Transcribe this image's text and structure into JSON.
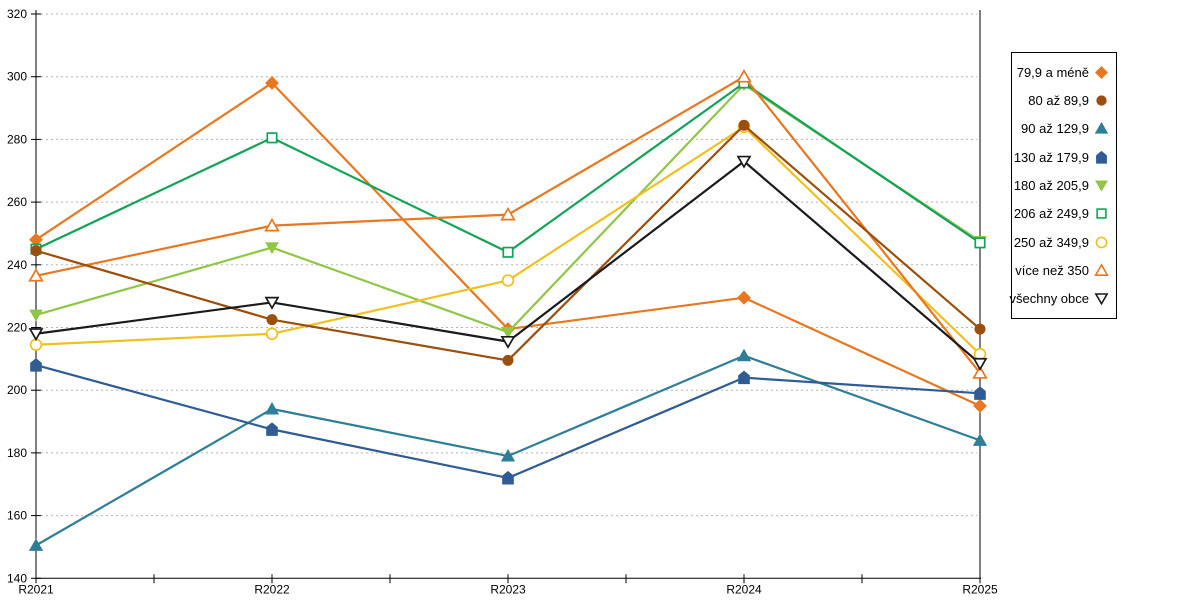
{
  "chart_data": {
    "type": "line",
    "title": "",
    "categories": [
      "R2021",
      "R2022",
      "R2023",
      "R2024",
      "R2025"
    ],
    "ylim": [
      140,
      320
    ],
    "ytick_step": 20,
    "yticks": [
      140,
      160,
      180,
      200,
      220,
      240,
      260,
      280,
      300,
      320
    ],
    "grid": "horizontal-dashed",
    "legend_position": "right",
    "series": [
      {
        "name": "79,9 a méně",
        "marker": "diamond",
        "fill": "solid",
        "color": "#E8771F",
        "values": [
          248,
          298,
          219.5,
          229.5,
          195
        ]
      },
      {
        "name": "80 až 89,9",
        "marker": "circle",
        "fill": "solid",
        "color": "#9C4F0C",
        "values": [
          244.5,
          222.5,
          209.5,
          284.5,
          219.5
        ]
      },
      {
        "name": "90 až 129,9",
        "marker": "triangle-up",
        "fill": "solid",
        "color": "#2E7E99",
        "values": [
          150.5,
          194,
          179,
          211,
          184
        ]
      },
      {
        "name": "130 až 179,9",
        "marker": "pentagon",
        "fill": "solid",
        "color": "#2F5C94",
        "values": [
          208,
          187.5,
          172,
          204,
          199
        ]
      },
      {
        "name": "180 až 205,9",
        "marker": "triangle-down",
        "fill": "solid",
        "color": "#8FC646",
        "values": [
          224,
          245.5,
          218.5,
          297.5,
          247.5
        ]
      },
      {
        "name": "206 až 249,9",
        "marker": "square",
        "fill": "hollow",
        "color": "#12A456",
        "values": [
          245,
          280.5,
          244,
          298,
          247
        ]
      },
      {
        "name": "250 až 349,9",
        "marker": "circle",
        "fill": "hollow",
        "color": "#F0C020",
        "values": [
          214.5,
          218,
          235,
          284,
          211.5
        ]
      },
      {
        "name": "více než 350",
        "marker": "triangle-up",
        "fill": "hollow",
        "color": "#E8771F",
        "values": [
          236.5,
          252.5,
          256,
          300,
          205.5
        ]
      },
      {
        "name": "všechny obce",
        "marker": "triangle-down",
        "fill": "hollow",
        "color": "#1A1A1A",
        "values": [
          218,
          228,
          215.5,
          273,
          208.5
        ]
      }
    ]
  }
}
